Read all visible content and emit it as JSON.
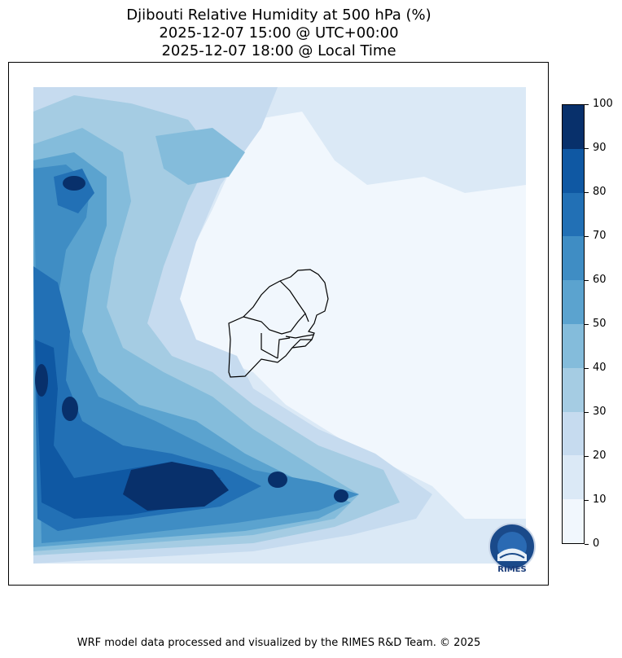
{
  "title": {
    "line1": "Djibouti Relative Humidity at 500 hPa (%)",
    "line2": "2025-12-07 15:00 @ UTC+00:00",
    "line3": "2025-12-07 18:00 @ Local Time"
  },
  "colorbar": {
    "levels": [
      "0",
      "10",
      "20",
      "30",
      "40",
      "50",
      "60",
      "70",
      "80",
      "90",
      "100"
    ],
    "colors": [
      "#f1f7fd",
      "#dbe9f6",
      "#c6dbef",
      "#a5cce3",
      "#84bcdb",
      "#5ba3cf",
      "#3f8dc4",
      "#2270b5",
      "#0f58a3",
      "#08306b"
    ]
  },
  "logo": {
    "text": "RIMES",
    "icon": "rimes-globe-icon"
  },
  "footer": "WRF model data processed and visualized by the RIMES R&D Team. © 2025"
}
